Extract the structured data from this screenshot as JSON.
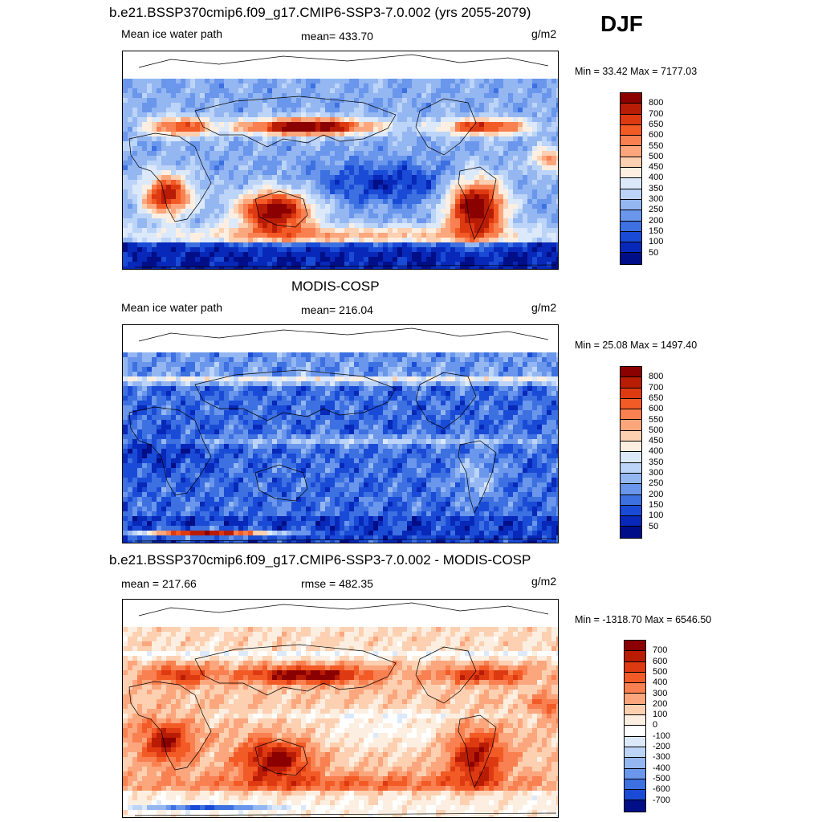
{
  "season": "DJF",
  "panels": [
    {
      "title": "b.e21.BSSP370cmip6.f09_g17.CMIP6-SSP3-7.0.002 (yrs 2055-2079)",
      "left_label": "Mean ice water path",
      "center_label": "mean= 433.70",
      "units": "g/m2",
      "minmax": "Min =  33.42 Max = 7177.03"
    },
    {
      "title": "MODIS-COSP",
      "left_label": "Mean ice water path",
      "center_label": "mean= 216.04",
      "units": "g/m2",
      "minmax": "Min =  25.08 Max = 1497.40"
    },
    {
      "title": "b.e21.BSSP370cmip6.f09_g17.CMIP6-SSP3-7.0.002 - MODIS-COSP",
      "left_label": "mean = 217.66",
      "center_label": "rmse = 482.35",
      "units": "g/m2",
      "minmax": "Min = -1318.70 Max = 6546.50"
    }
  ],
  "chart_data": [
    {
      "type": "heatmap",
      "title": "b.e21.BSSP370cmip6.f09_g17.CMIP6-SSP3-7.0.002 (yrs 2055-2079)",
      "variable": "Mean ice water path",
      "units": "g/m2",
      "mean": 433.7,
      "min": 33.42,
      "max": 7177.03,
      "colorbar_levels": [
        800,
        700,
        650,
        600,
        550,
        500,
        450,
        400,
        350,
        300,
        250,
        200,
        150,
        100,
        50
      ],
      "colorbar_colors": [
        "#8b0000",
        "#b91c05",
        "#de3a12",
        "#f25a26",
        "#f98050",
        "#fba67d",
        "#fcd0b1",
        "#fcefe1",
        "#dce9fb",
        "#bcd4f7",
        "#94b7f2",
        "#6a96eb",
        "#3d70e0",
        "#1a4bd6",
        "#0728b8",
        "#000e88"
      ]
    },
    {
      "type": "heatmap",
      "title": "MODIS-COSP",
      "variable": "Mean ice water path",
      "units": "g/m2",
      "mean": 216.04,
      "min": 25.08,
      "max": 1497.4,
      "colorbar_levels": [
        800,
        700,
        650,
        600,
        550,
        500,
        450,
        400,
        350,
        300,
        250,
        200,
        150,
        100,
        50
      ],
      "colorbar_colors": [
        "#8b0000",
        "#b91c05",
        "#de3a12",
        "#f25a26",
        "#f98050",
        "#fba67d",
        "#fcd0b1",
        "#fcefe1",
        "#dce9fb",
        "#bcd4f7",
        "#94b7f2",
        "#6a96eb",
        "#3d70e0",
        "#1a4bd6",
        "#0728b8",
        "#000e88"
      ]
    },
    {
      "type": "heatmap",
      "title": "b.e21.BSSP370cmip6.f09_g17.CMIP6-SSP3-7.0.002 - MODIS-COSP",
      "units": "g/m2",
      "mean": 217.66,
      "rmse": 482.35,
      "min": -1318.7,
      "max": 6546.5,
      "colorbar_levels": [
        700,
        600,
        500,
        400,
        300,
        200,
        100,
        0,
        -100,
        -200,
        -300,
        -400,
        -500,
        -600,
        -700
      ],
      "colorbar_colors": [
        "#8b0000",
        "#b91c05",
        "#de3a12",
        "#f25a26",
        "#f98050",
        "#fba67d",
        "#fcd0b1",
        "#fcefe1",
        "#ffffff",
        "#dce9fb",
        "#bcd4f7",
        "#94b7f2",
        "#6a96eb",
        "#3d70e0",
        "#1a4bd6",
        "#000e88"
      ]
    }
  ]
}
